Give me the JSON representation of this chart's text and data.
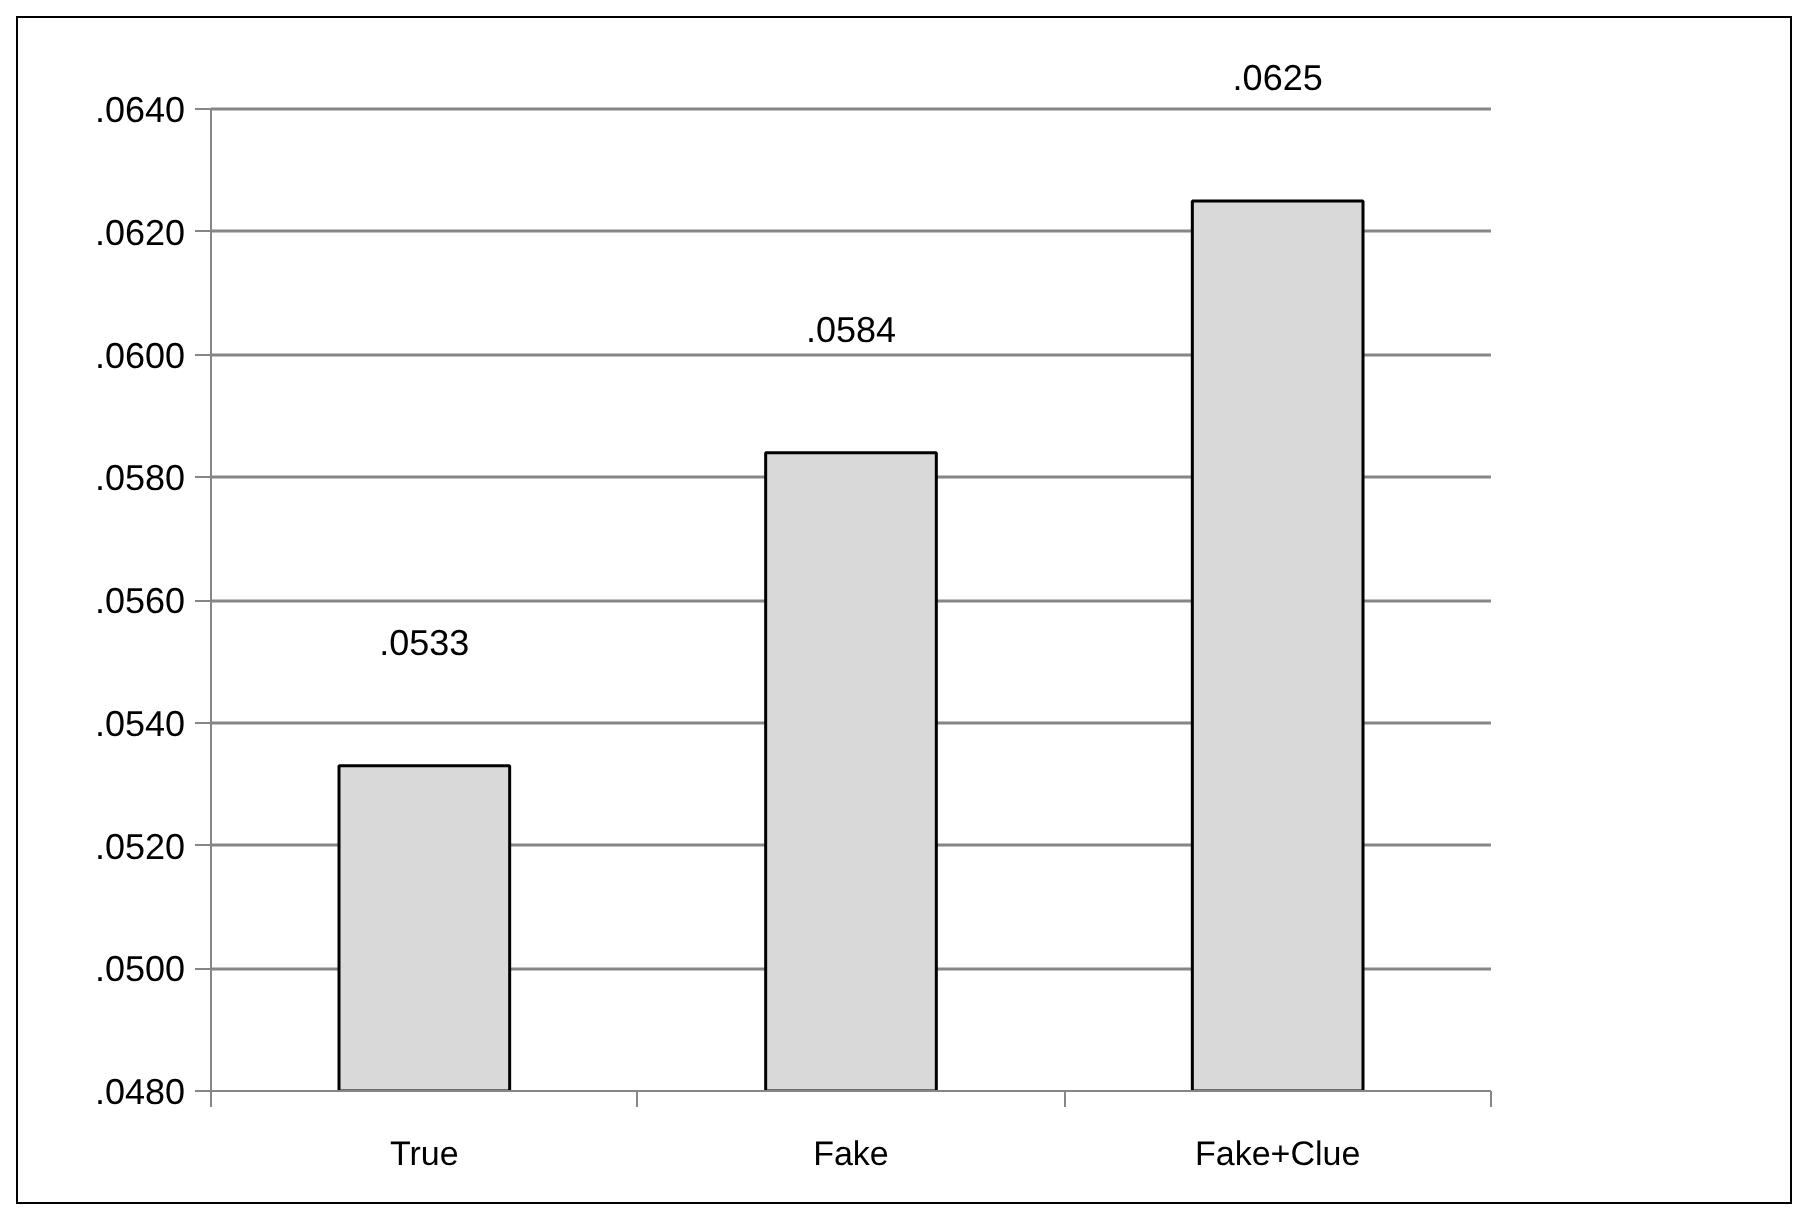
{
  "chart_data": {
    "type": "bar",
    "categories": [
      "True",
      "Fake",
      "Fake+Clue"
    ],
    "values": [
      0.0533,
      0.0584,
      0.0625
    ],
    "value_labels": [
      ".0533",
      ".0584",
      ".0625"
    ],
    "color": "#d9d9d9",
    "ylim": [
      0.048,
      0.064
    ],
    "yticks": [
      {
        "value": 0.048,
        "label": ".0480"
      },
      {
        "value": 0.05,
        "label": ".0500"
      },
      {
        "value": 0.052,
        "label": ".0520"
      },
      {
        "value": 0.054,
        "label": ".0540"
      },
      {
        "value": 0.056,
        "label": ".0560"
      },
      {
        "value": 0.058,
        "label": ".0580"
      },
      {
        "value": 0.06,
        "label": ".0600"
      },
      {
        "value": 0.062,
        "label": ".0620"
      },
      {
        "value": 0.064,
        "label": ".0640"
      }
    ],
    "grid": "y"
  }
}
